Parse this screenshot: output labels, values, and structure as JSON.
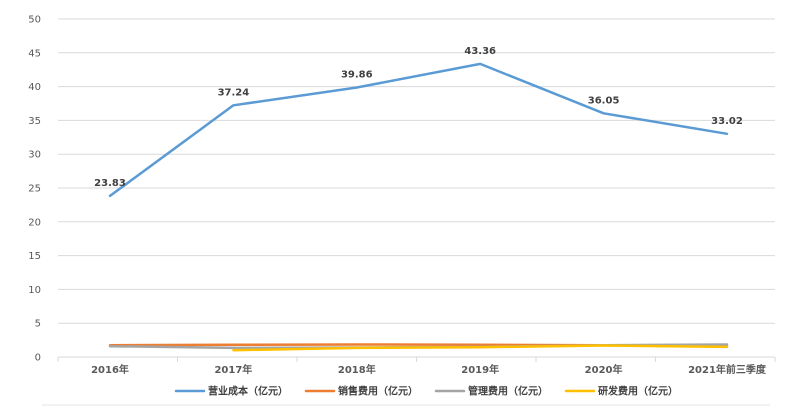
{
  "chart_data": {
    "type": "line",
    "title": "",
    "xlabel": "",
    "ylabel": "",
    "categories": [
      "2016年",
      "2017年",
      "2018年",
      "2019年",
      "2020年",
      "2021年前三季度"
    ],
    "ylim": [
      0,
      50
    ],
    "yticks": [
      0,
      5,
      10,
      15,
      20,
      25,
      30,
      35,
      40,
      45,
      50
    ],
    "grid": true,
    "legend_position": "bottom",
    "series": [
      {
        "name": "营业成本（亿元）",
        "color": "#5B9BD5",
        "values": [
          23.83,
          37.24,
          39.86,
          43.36,
          36.05,
          33.02
        ],
        "labels": [
          "23.83",
          "37.24",
          "39.86",
          "43.36",
          "36.05",
          "33.02"
        ]
      },
      {
        "name": "销售费用（亿元）",
        "color": "#ED7D31",
        "values": [
          1.75,
          1.8,
          1.85,
          1.8,
          1.75,
          1.7
        ]
      },
      {
        "name": "管理费用（亿元）",
        "color": "#A5A5A5",
        "values": [
          1.6,
          1.35,
          1.4,
          1.5,
          1.75,
          1.85
        ]
      },
      {
        "name": "研发费用（亿元）",
        "color": "#FFC000",
        "values": [
          null,
          1.0,
          1.35,
          1.45,
          1.7,
          1.5
        ]
      }
    ]
  }
}
